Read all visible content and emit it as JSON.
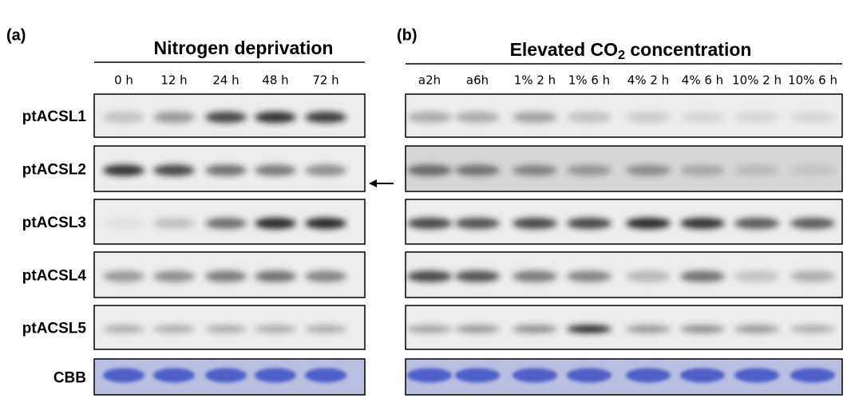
{
  "panel_a": {
    "label": "(a)",
    "title": "Nitrogen deprivation",
    "lanes": [
      "0 h",
      "12 h",
      "24 h",
      "48 h",
      "72 h"
    ]
  },
  "panel_b": {
    "label": "(b)",
    "title": {
      "prefix": "Elevated CO",
      "subscript": "2",
      "suffix": " concentration"
    },
    "lanes": [
      "a2h",
      "a6h",
      "1% 2 h",
      "1% 6 h",
      "4% 2 h",
      "4% 6 h",
      "10% 2 h",
      "10% 6 h"
    ]
  },
  "rows": [
    "ptACSL1",
    "ptACSL2",
    "ptACSL3",
    "ptACSL4",
    "ptACSL5",
    "CBB"
  ]
}
